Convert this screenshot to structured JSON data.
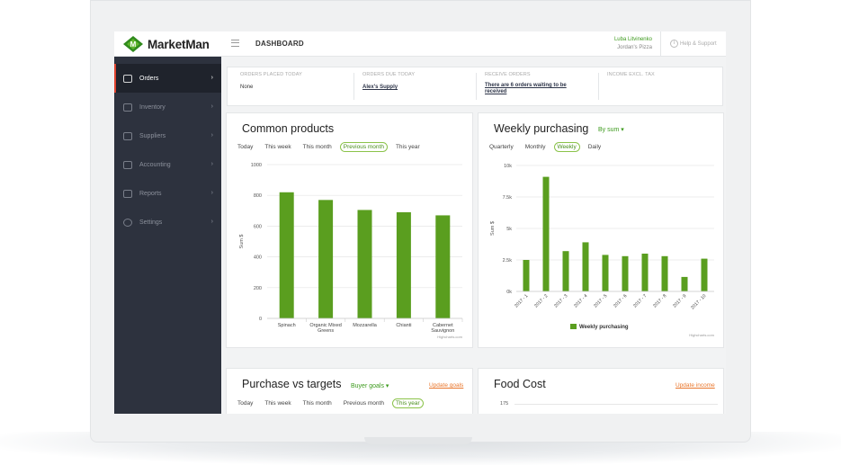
{
  "app": {
    "name": "MarketMan",
    "page_title": "DASHBOARD",
    "user_name": "Luba Litvinenko",
    "user_company": "Jordan's Pizza",
    "help_label": "Help & Support",
    "brand_color": "#5a9e1f",
    "accent_color": "#e0442f"
  },
  "sidebar": {
    "items": [
      {
        "label": "Orders",
        "icon": "cart-icon",
        "active": true
      },
      {
        "label": "Inventory",
        "icon": "inventory-icon"
      },
      {
        "label": "Suppliers",
        "icon": "truck-icon"
      },
      {
        "label": "Accounting",
        "icon": "ledger-icon"
      },
      {
        "label": "Reports",
        "icon": "bar-chart-icon"
      },
      {
        "label": "Settings",
        "icon": "gear-icon"
      }
    ]
  },
  "summary": [
    {
      "label": "ORDERS PLACED TODAY",
      "value": "None"
    },
    {
      "label": "ORDERS DUE TODAY",
      "value": "Alex's Supply"
    },
    {
      "label": "RECEIVE ORDERS",
      "value": "There are 6 orders waiting to be received"
    },
    {
      "label": "INCOME EXCL. TAX",
      "value": ""
    }
  ],
  "common_products": {
    "title": "Common products",
    "tabs": [
      "Today",
      "This week",
      "This month",
      "Previous month",
      "This year"
    ],
    "selected_tab": "Previous month",
    "credit": "Highcharts.com"
  },
  "weekly_purchasing": {
    "title": "Weekly purchasing",
    "dropdown": "By sum",
    "tabs": [
      "Quarterly",
      "Monthly",
      "Weekly",
      "Daily"
    ],
    "selected_tab": "Weekly",
    "credit": "Highcharts.com"
  },
  "purchase_targets": {
    "title": "Purchase vs targets",
    "dropdown": "Buyer goals",
    "update_link": "Update goals",
    "tabs": [
      "Today",
      "This week",
      "This month",
      "Previous month",
      "This year"
    ],
    "selected_tab": "This year"
  },
  "food_cost": {
    "title": "Food Cost",
    "update_link": "Update income",
    "first_tick": "175"
  },
  "chart_data": [
    {
      "type": "bar",
      "title": "",
      "categories": [
        "Spinach",
        "Organic Mixed Greens",
        "Mozzarella",
        "Chianti",
        "Cabernet Sauvignon"
      ],
      "values": [
        820,
        770,
        705,
        690,
        670
      ],
      "xlabel": "",
      "ylabel": "Sum $",
      "ylim": [
        0,
        1000
      ],
      "yticks": [
        "0",
        "200",
        "400",
        "600",
        "800",
        "1000"
      ],
      "color": "#5a9e1f",
      "grid": true
    },
    {
      "type": "bar",
      "title": "",
      "categories": [
        "2017 - 1",
        "2017 - 2",
        "2017 - 3",
        "2017 - 4",
        "2017 - 5",
        "2017 - 6",
        "2017 - 7",
        "2017 - 8",
        "2017 - 9",
        "2017 - 10"
      ],
      "series": [
        {
          "name": "Weekly purchasing",
          "values": [
            2500,
            9100,
            3200,
            3900,
            2900,
            2800,
            3000,
            2800,
            1150,
            2600
          ]
        }
      ],
      "xlabel": "",
      "ylabel": "Sum $",
      "ylim": [
        0,
        10000
      ],
      "yticks": [
        "0k",
        "2.5k",
        "5k",
        "7.5k",
        "10k"
      ],
      "color": "#5a9e1f",
      "legend": "bottom",
      "grid": true
    }
  ]
}
